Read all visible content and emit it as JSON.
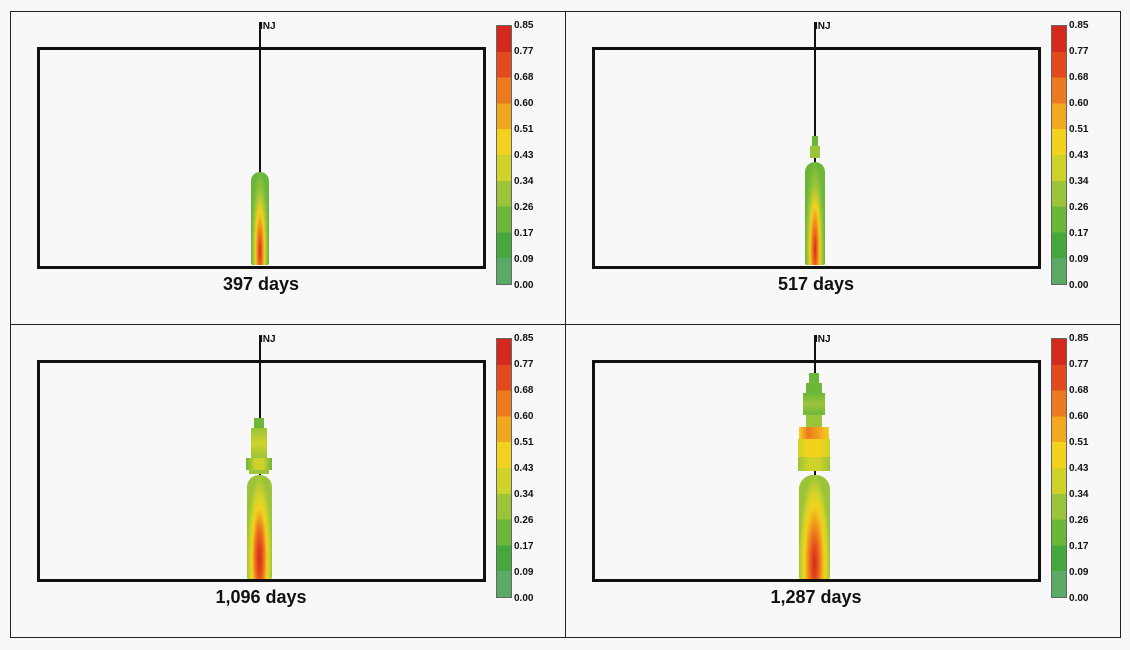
{
  "well_name": "INJ",
  "colorbar": {
    "ticks": [
      "0.85",
      "0.77",
      "0.68",
      "0.60",
      "0.51",
      "0.43",
      "0.34",
      "0.26",
      "0.17",
      "0.09",
      "0.00"
    ],
    "colors": [
      "#d42a1e",
      "#e24a1e",
      "#ec7a1e",
      "#f1a81e",
      "#f3d11f",
      "#cfd22a",
      "#9bc43a",
      "#6cb73a",
      "#45a83c",
      "#5aaa66"
    ]
  },
  "panels": [
    {
      "caption": "397 days"
    },
    {
      "caption": "517 days"
    },
    {
      "caption": "1,096 days"
    },
    {
      "caption": "1,287 days"
    }
  ]
}
